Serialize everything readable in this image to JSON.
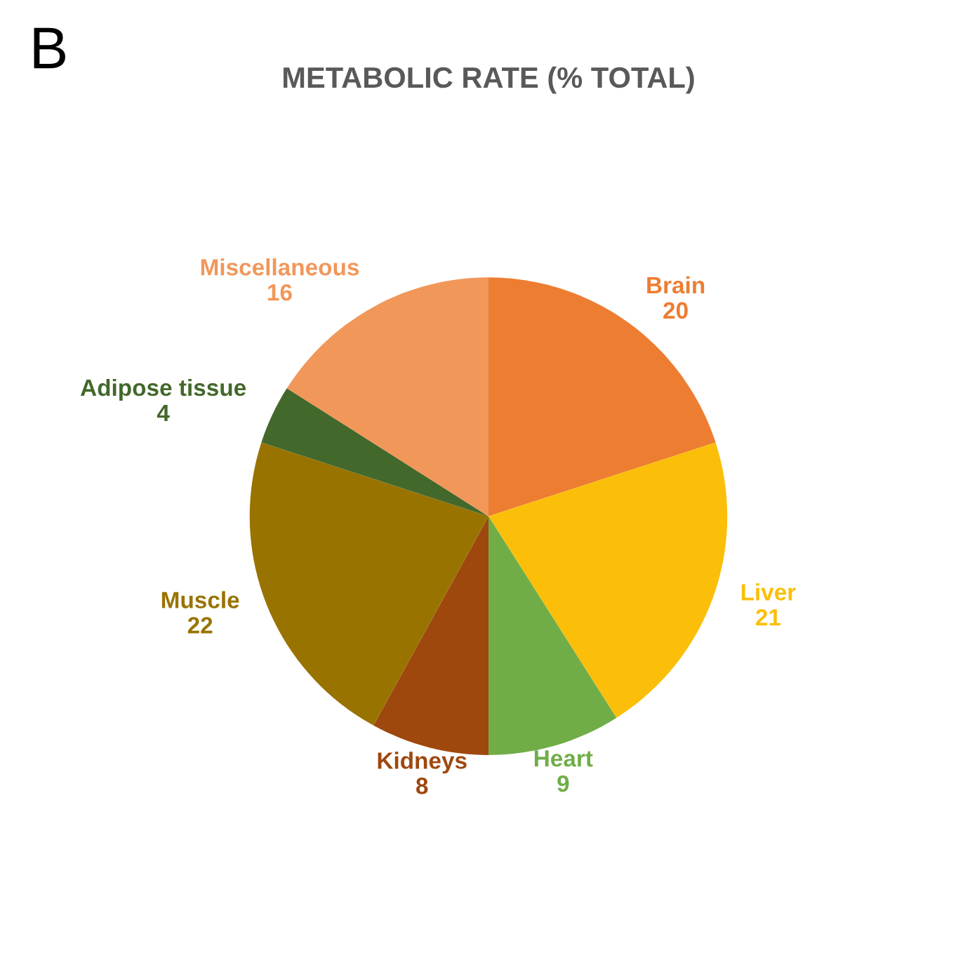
{
  "chart_data": {
    "type": "pie",
    "title": "METABOLIC RATE (% TOTAL)",
    "annotations": [
      "B"
    ],
    "categories": [
      "Brain",
      "Liver",
      "Heart",
      "Kidneys",
      "Muscle",
      "Adipose tissue",
      "Miscellaneous"
    ],
    "values": [
      20,
      21,
      9,
      8,
      22,
      4,
      16
    ],
    "colors": [
      "#ed7d31",
      "#fbbf0a",
      "#70ad47",
      "#9e480e",
      "#997300",
      "#43682b",
      "#f1975a"
    ],
    "data_labels": true,
    "legend": false
  }
}
